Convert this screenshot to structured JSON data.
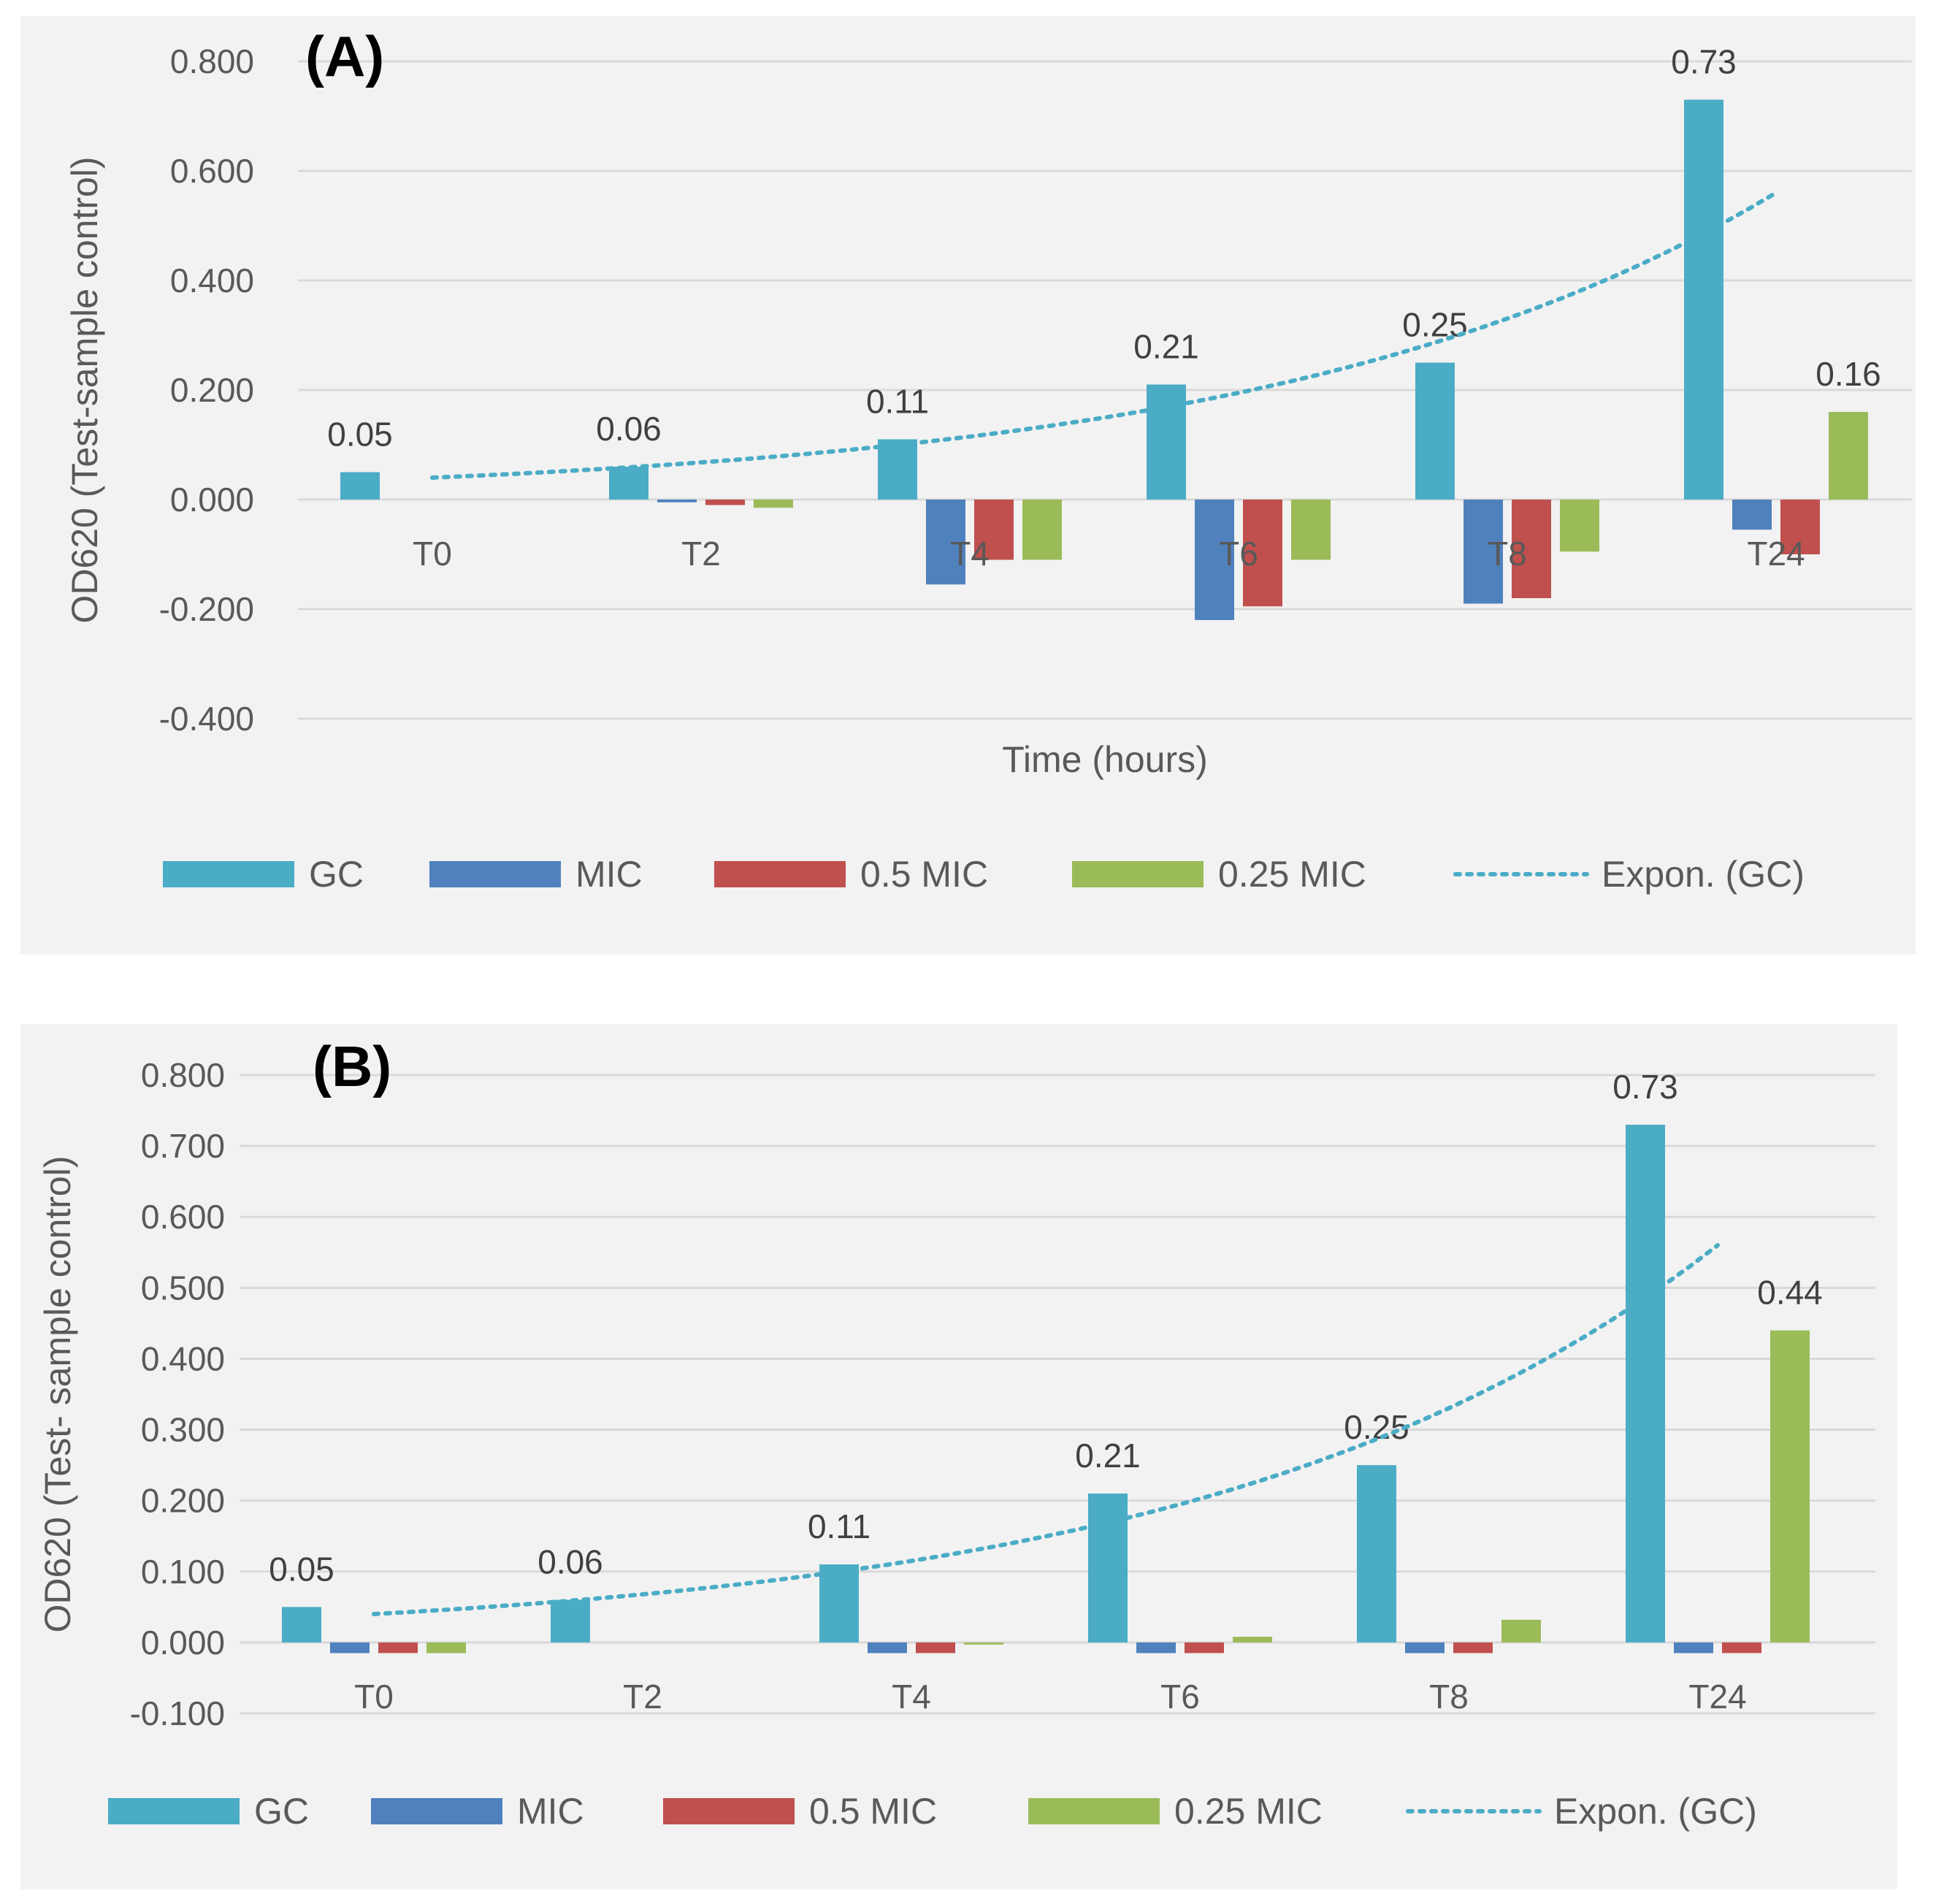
{
  "chart_data": [
    {
      "type": "bar",
      "panel_label": "(A)",
      "ylabel": "OD620 (Test-sample control)",
      "xlabel": "Time (hours)",
      "ylim": [
        -0.4,
        0.8
      ],
      "yticks": [
        0.8,
        0.6,
        0.4,
        0.2,
        0.0,
        -0.2,
        -0.4
      ],
      "ytick_labels": [
        "0.800",
        "0.600",
        "0.400",
        "0.200",
        "0.000",
        "-0.200",
        "-0.400"
      ],
      "categories": [
        "T0",
        "T2",
        "T4",
        "T6",
        "T8",
        "T24"
      ],
      "series": [
        {
          "name": "GC",
          "color": "#4bacc6",
          "values": [
            0.05,
            0.06,
            0.11,
            0.21,
            0.25,
            0.73
          ]
        },
        {
          "name": "MIC",
          "color": "#4f81bd",
          "values": [
            0.0,
            -0.005,
            -0.155,
            -0.22,
            -0.19,
            -0.055
          ]
        },
        {
          "name": "0.5 MIC",
          "color": "#c0504d",
          "values": [
            0.0,
            -0.01,
            -0.11,
            -0.195,
            -0.18,
            -0.1
          ]
        },
        {
          "name": "0.25 MIC",
          "color": "#9bbb59",
          "values": [
            0.0,
            -0.015,
            -0.11,
            -0.11,
            -0.095,
            0.16
          ]
        }
      ],
      "data_labels": [
        "0.05",
        "0.06",
        "0.11",
        "0.21",
        "0.25",
        "0.73"
      ],
      "data_labels_extra": [
        {
          "series": "0.25 MIC",
          "category": "T24",
          "label": "0.16"
        }
      ],
      "trendline": {
        "name": "Expon. (GC)",
        "color": "#4bacc6",
        "start": 0.04,
        "end": 0.56
      },
      "legend": [
        "GC",
        "MIC",
        "0.5 MIC",
        "0.25 MIC",
        "Expon. (GC)"
      ],
      "legend_position": "bottom",
      "grid": true
    },
    {
      "type": "bar",
      "panel_label": "(B)",
      "ylabel": "OD620 (Test- sample control)",
      "xlabel": "",
      "ylim": [
        -0.1,
        0.8
      ],
      "yticks": [
        0.8,
        0.7,
        0.6,
        0.5,
        0.4,
        0.3,
        0.2,
        0.1,
        0.0,
        -0.1
      ],
      "ytick_labels": [
        "0.800",
        "0.700",
        "0.600",
        "0.500",
        "0.400",
        "0.300",
        "0.200",
        "0.100",
        "0.000",
        "-0.100"
      ],
      "categories": [
        "T0",
        "T2",
        "T4",
        "T6",
        "T8",
        "T24"
      ],
      "series": [
        {
          "name": "GC",
          "color": "#4bacc6",
          "values": [
            0.05,
            0.06,
            0.11,
            0.21,
            0.25,
            0.73
          ]
        },
        {
          "name": "MIC",
          "color": "#4f81bd",
          "values": [
            -0.015,
            0.0,
            -0.015,
            -0.015,
            -0.015,
            -0.015
          ]
        },
        {
          "name": "0.5 MIC",
          "color": "#c0504d",
          "values": [
            -0.015,
            0.0,
            -0.015,
            -0.015,
            -0.015,
            -0.015
          ]
        },
        {
          "name": "0.25 MIC",
          "color": "#9bbb59",
          "values": [
            -0.015,
            0.0,
            -0.003,
            0.008,
            0.032,
            0.44
          ]
        }
      ],
      "data_labels": [
        "0.05",
        "0.06",
        "0.11",
        "0.21",
        "0.25",
        "0.73"
      ],
      "data_labels_extra": [
        {
          "series": "0.25 MIC",
          "category": "T24",
          "label": "0.44"
        }
      ],
      "trendline": {
        "name": "Expon. (GC)",
        "color": "#4bacc6",
        "start": 0.04,
        "end": 0.56
      },
      "legend": [
        "GC",
        "MIC",
        "0.5 MIC",
        "0.25 MIC",
        "Expon. (GC)"
      ],
      "legend_position": "bottom",
      "grid": true
    }
  ]
}
